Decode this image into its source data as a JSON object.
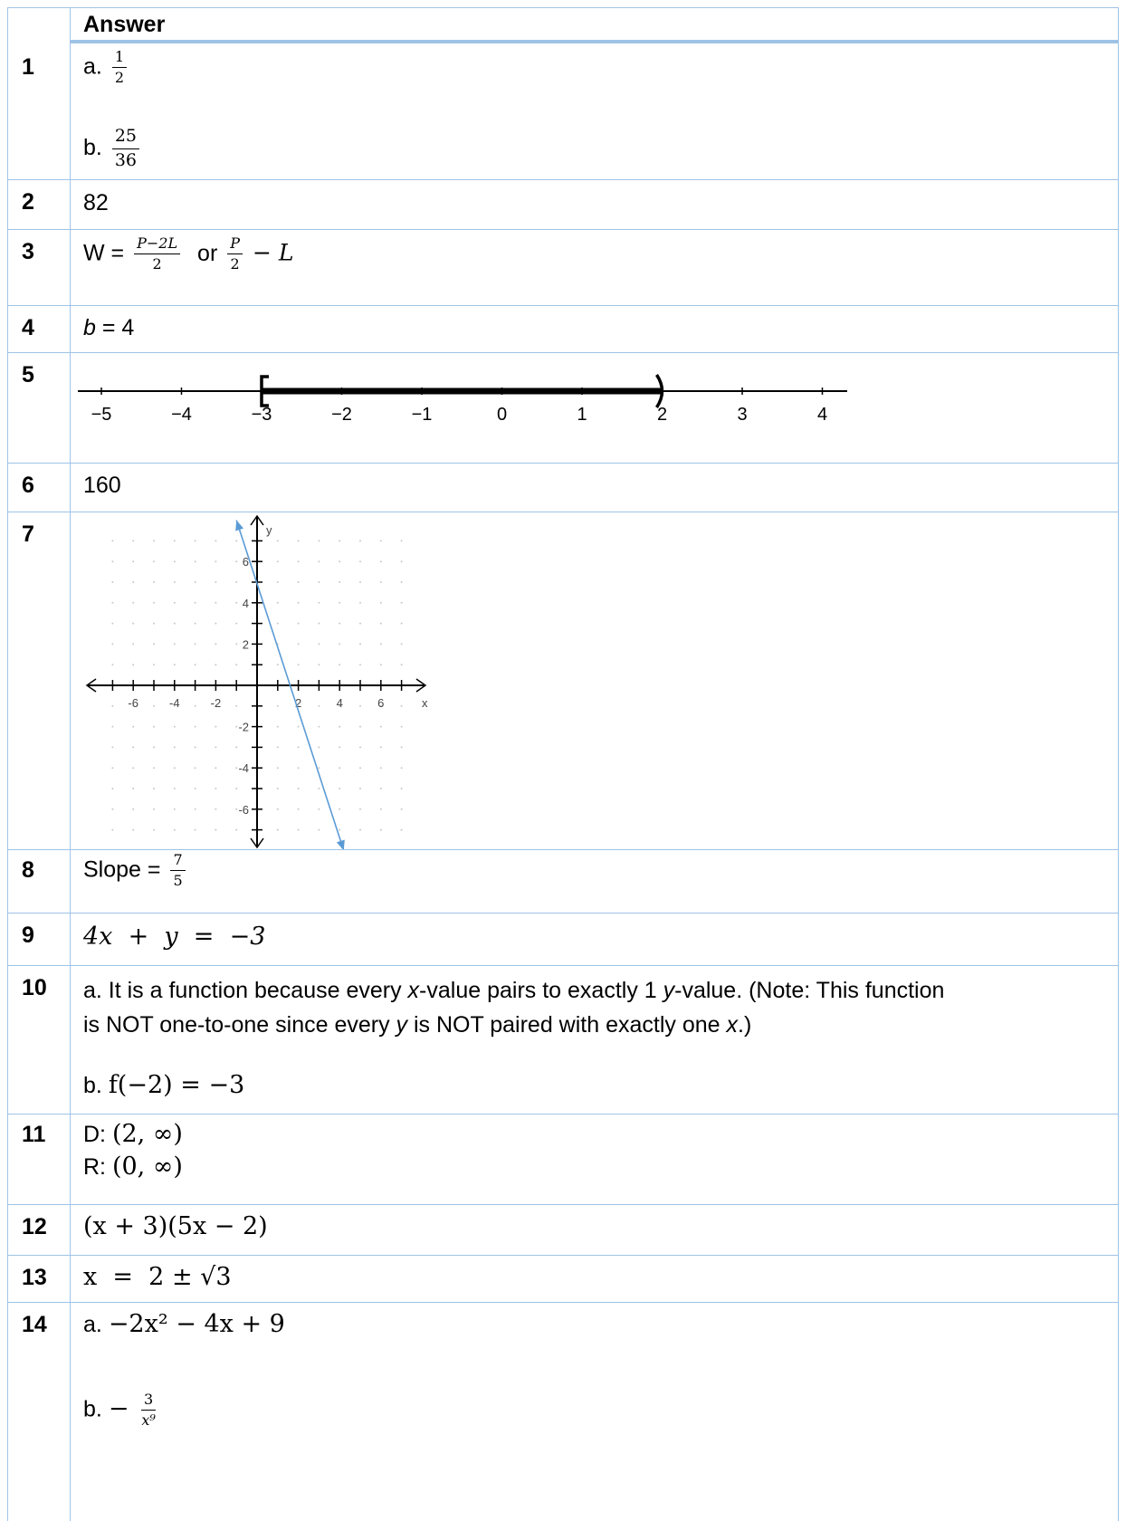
{
  "header": {
    "answer_label": "Answer"
  },
  "rows": {
    "r1": {
      "num": "1",
      "a_label": "a.",
      "a_num": "1",
      "a_den": "2",
      "b_label": "b.",
      "b_num": "25",
      "b_den": "36"
    },
    "r2": {
      "num": "2",
      "text": "82"
    },
    "r3": {
      "num": "3",
      "w_label": "W =",
      "f1_num": "P−2L",
      "f1_den": "2",
      "or_label": "or",
      "f2_num": "P",
      "f2_den": "2",
      "tail": "− L"
    },
    "r4": {
      "num": "4",
      "var": "b",
      "rest": " = 4"
    },
    "r5": {
      "num": "5",
      "ticks": [
        "−5",
        "−4",
        "−3",
        "−2",
        "−1",
        "0",
        "1",
        "2",
        "3",
        "4"
      ],
      "interval": {
        "from": -3,
        "to": 2,
        "left_bracket": "[",
        "right_bracket": ")"
      }
    },
    "r6": {
      "num": "6",
      "text": "160"
    },
    "r7": {
      "num": "7",
      "x_label": "x",
      "y_label": "y",
      "x_ticks": [
        "-6",
        "-4",
        "-2",
        "2",
        "4",
        "6"
      ],
      "y_ticks": [
        "6",
        "4",
        "2",
        "-2",
        "-4",
        "-6"
      ],
      "line_color": "#5b9bd5",
      "axis_color": "#000000",
      "line": {
        "x1": -1,
        "y1": 8,
        "x2": 4.2,
        "y2": -8
      }
    },
    "r8": {
      "num": "8",
      "label": "Slope =",
      "f_num": "7",
      "f_den": "5"
    },
    "r9": {
      "num": "9",
      "eq": "4x  +  y  =  −3"
    },
    "r10": {
      "num": "10",
      "a_pre": "a. It is a function because every ",
      "a_x": "x",
      "a_mid": "-value pairs to exactly 1 ",
      "a_y": "y",
      "a_mid2": "-value.  (Note: This function",
      "a_line2_pre": "is NOT one-to-one since every ",
      "a_y2": "y",
      "a_line2_mid": " is NOT paired with exactly one ",
      "a_x2": "x",
      "a_line2_end": ".)",
      "b_label": "b.",
      "b_eq": "f(−2) = −3"
    },
    "r11": {
      "num": "11",
      "d_label": "D:",
      "d_val": "(2, ∞)",
      "r_label": "R:",
      "r_val": "(0, ∞)"
    },
    "r12": {
      "num": "12",
      "eq": "(x + 3)(5x − 2)"
    },
    "r13": {
      "num": "13",
      "eq": "x  =  2 ± √3"
    },
    "r14": {
      "num": "14",
      "a_label": "a.",
      "a_eq": "−2x² − 4x + 9",
      "b_label": "b.",
      "b_sign": "−",
      "b_num": "3",
      "b_den": "x⁹"
    }
  }
}
